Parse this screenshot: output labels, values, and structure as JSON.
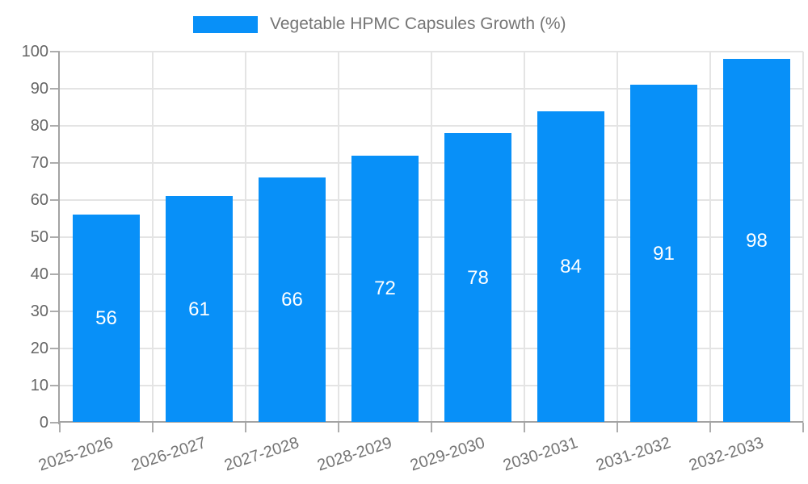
{
  "chart_data": {
    "type": "bar",
    "title": "Vegetable HPMC Capsules Growth (%)",
    "categories": [
      "2025-2026",
      "2026-2027",
      "2027-2028",
      "2028-2029",
      "2029-2030",
      "2030-2031",
      "2031-2032",
      "2032-2033"
    ],
    "values": [
      56,
      61,
      66,
      72,
      78,
      84,
      91,
      98
    ],
    "bar_value_labels": [
      "56",
      "61",
      "66",
      "72",
      "78",
      "84",
      "91",
      "98"
    ],
    "xlabel": "",
    "ylabel": "",
    "ylim": [
      0,
      100
    ],
    "yticks": [
      0,
      10,
      20,
      30,
      40,
      50,
      60,
      70,
      80,
      90,
      100
    ],
    "grid": true,
    "legend_position": "top-center",
    "colors": {
      "bar": "#0890f8",
      "bar_label": "#ffffff",
      "axis_text": "#666666",
      "legend_text": "#757575",
      "grid_line": "#e4e4e4",
      "axis_line": "#a3a3a3",
      "tick": "#adadad",
      "background": "#ffffff"
    }
  }
}
